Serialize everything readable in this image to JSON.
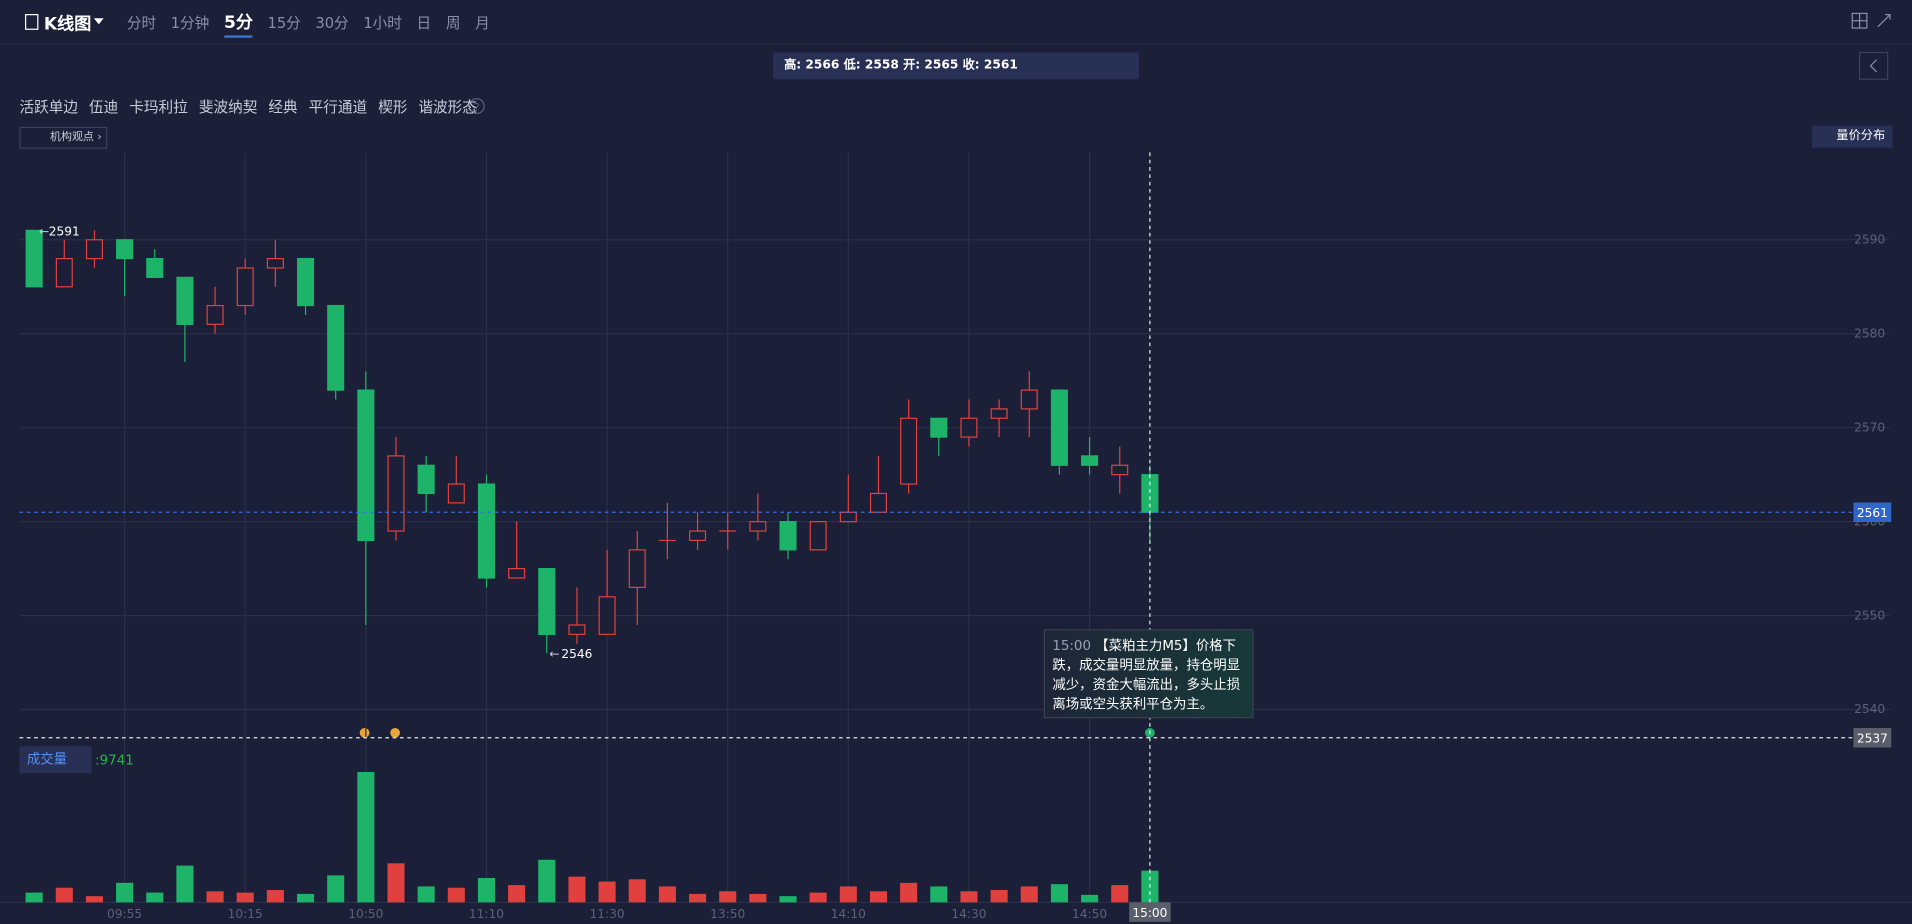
{
  "header": {
    "title": "K线图",
    "tabs": [
      "分时",
      "1分钟",
      "5分",
      "15分",
      "30分",
      "1小时",
      "日",
      "周",
      "月"
    ],
    "active_tab": 2
  },
  "ohlc_summary": "高: 2566 低: 2558 开: 2565 收: 2561",
  "indicators": [
    "活跃单边",
    "伍迪",
    "卡玛利拉",
    "斐波纳契",
    "经典",
    "平行通道",
    "楔形",
    "谐波形态"
  ],
  "help_icon": "?",
  "institution_button": "机构观点",
  "price_distribution_button": "量价分布",
  "volume_indicator": {
    "name": "成交量",
    "value_text": ":9741"
  },
  "tooltip": {
    "time": "15:00",
    "text": "【菜粕主力M5】价格下跌，成交量明显放量，持仓明显减少，资金大幅流出，多头止损离场或空头获利平仓为主。"
  },
  "chart_data": {
    "type": "candlestick",
    "categories": [
      null,
      null,
      null,
      "09:55",
      null,
      null,
      null,
      "10:15",
      null,
      null,
      null,
      "10:50",
      null,
      null,
      null,
      "11:10",
      null,
      null,
      null,
      "11:30",
      null,
      null,
      null,
      "13:50",
      null,
      null,
      null,
      "14:10",
      null,
      null,
      null,
      "14:30",
      null,
      null,
      null,
      "14:50",
      null,
      "15:00"
    ],
    "open": [
      2591,
      2585,
      2588,
      2590,
      2588,
      2586,
      2581,
      2583,
      2587,
      2588,
      2583,
      2574,
      2559,
      2566,
      2562,
      2564,
      2554,
      2555,
      2548,
      2548,
      2553,
      2558,
      2558,
      2559,
      2559,
      2560,
      2557,
      2560,
      2561,
      2564,
      2571,
      2569,
      2571,
      2572,
      2574,
      2567,
      2565,
      2565
    ],
    "high": [
      2591,
      2590,
      2591,
      2590,
      2589,
      2586,
      2585,
      2588,
      2590,
      2588,
      2583,
      2576,
      2569,
      2567,
      2567,
      2565,
      2560,
      2555,
      2553,
      2557,
      2559,
      2562,
      2561,
      2561,
      2563,
      2561,
      2560,
      2565,
      2567,
      2573,
      2571,
      2573,
      2573,
      2576,
      2574,
      2569,
      2568,
      2566
    ],
    "low": [
      2585,
      2585,
      2587,
      2584,
      2586,
      2577,
      2580,
      2582,
      2585,
      2582,
      2573,
      2549,
      2558,
      2561,
      2562,
      2553,
      2554,
      2546,
      2547,
      2548,
      2549,
      2556,
      2557,
      2557,
      2558,
      2556,
      2557,
      2560,
      2561,
      2563,
      2567,
      2568,
      2569,
      2569,
      2565,
      2565,
      2563,
      2558
    ],
    "close": [
      2585,
      2588,
      2590,
      2588,
      2586,
      2581,
      2583,
      2587,
      2588,
      2583,
      2574,
      2558,
      2567,
      2563,
      2564,
      2554,
      2555,
      2548,
      2549,
      2552,
      2557,
      2558,
      2559,
      2559,
      2560,
      2557,
      2560,
      2561,
      2563,
      2571,
      2569,
      2571,
      2572,
      2574,
      2566,
      2566,
      2566,
      2561
    ],
    "volume": [
      3000,
      4500,
      1900,
      6000,
      3000,
      11300,
      3400,
      3000,
      3800,
      2600,
      8300,
      40100,
      12000,
      4900,
      4500,
      7500,
      5300,
      13100,
      7900,
      6400,
      7100,
      4900,
      2600,
      3400,
      2600,
      1900,
      3000,
      4900,
      3400,
      6000,
      4900,
      3400,
      3800,
      4900,
      5600,
      2300,
      5300,
      9741
    ],
    "up_color": "#e0413e",
    "down_color": "#1db46a",
    "ylim": [
      2537,
      2599.3
    ],
    "yticks": [
      2540,
      2550,
      2560,
      2570,
      2580,
      2590
    ],
    "volume_ylim": [
      0,
      45000
    ],
    "grid": true,
    "last_price": 2561,
    "crosshair": {
      "index": 37,
      "price": 2537
    }
  }
}
